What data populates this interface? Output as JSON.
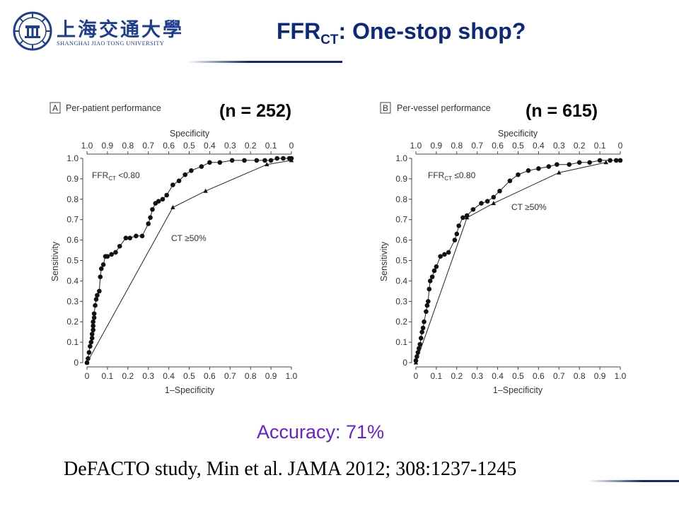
{
  "header": {
    "university_cn": "上海交通大學",
    "university_en": "SHANGHAI JIAO TONG UNIVERSITY",
    "title_main": "FFR",
    "title_sub": "CT",
    "title_rest": ": One-stop shop?"
  },
  "accuracy_text": "Accuracy: 71%",
  "citation": "DeFACTO study,  Min et al. JAMA 2012; 308:1237-1245",
  "chart_data": [
    {
      "type": "line",
      "panel_letter": "A",
      "panel_title": "Per-patient performance",
      "n_label": "(n = 252)",
      "xlabel": "1–Specificity",
      "ylabel": "Sensitivity",
      "top_axis_label": "Specificity",
      "xlim": [
        0,
        1
      ],
      "ylim": [
        0,
        1
      ],
      "x_ticks": [
        "0",
        "0.1",
        "0.2",
        "0.3",
        "0.4",
        "0.5",
        "0.6",
        "0.7",
        "0.8",
        "0.9",
        "1.0"
      ],
      "y_ticks": [
        "0",
        "0.1",
        "0.2",
        "0.3",
        "0.4",
        "0.5",
        "0.6",
        "0.7",
        "0.8",
        "0.9",
        "1.0"
      ],
      "top_ticks": [
        "1.0",
        "0.9",
        "0.8",
        "0.7",
        "0.6",
        "0.5",
        "0.4",
        "0.3",
        "0.2",
        "0.1",
        "0"
      ],
      "series": [
        {
          "name": "FFR",
          "name_sub": "CT",
          "name_rest": " <0.80",
          "marker": "circle",
          "x": [
            0,
            0.005,
            0.01,
            0.015,
            0.02,
            0.025,
            0.025,
            0.03,
            0.03,
            0.03,
            0.035,
            0.035,
            0.04,
            0.045,
            0.05,
            0.06,
            0.065,
            0.07,
            0.08,
            0.09,
            0.1,
            0.12,
            0.14,
            0.16,
            0.19,
            0.21,
            0.24,
            0.27,
            0.3,
            0.31,
            0.32,
            0.335,
            0.35,
            0.37,
            0.39,
            0.42,
            0.45,
            0.48,
            0.51,
            0.56,
            0.6,
            0.65,
            0.71,
            0.77,
            0.83,
            0.87,
            0.9,
            0.93,
            0.96,
            0.99,
            1.0
          ],
          "y": [
            0,
            0.02,
            0.05,
            0.08,
            0.1,
            0.12,
            0.14,
            0.16,
            0.18,
            0.2,
            0.22,
            0.24,
            0.28,
            0.31,
            0.33,
            0.35,
            0.42,
            0.46,
            0.48,
            0.52,
            0.52,
            0.53,
            0.54,
            0.57,
            0.61,
            0.61,
            0.62,
            0.62,
            0.68,
            0.71,
            0.75,
            0.78,
            0.79,
            0.8,
            0.82,
            0.87,
            0.89,
            0.92,
            0.94,
            0.96,
            0.98,
            0.98,
            0.99,
            0.99,
            0.99,
            0.99,
            0.99,
            1.0,
            1.0,
            1.0,
            1.0
          ]
        },
        {
          "name": "CT ≥50%",
          "marker": "triangle",
          "x": [
            0,
            0.42,
            0.58,
            0.88,
            1.0
          ],
          "y": [
            0,
            0.76,
            0.84,
            0.97,
            0.99
          ]
        }
      ]
    },
    {
      "type": "line",
      "panel_letter": "B",
      "panel_title": "Per-vessel performance",
      "n_label": "(n = 615)",
      "xlabel": "1–Specificity",
      "ylabel": "Sensitivity",
      "top_axis_label": "Specificity",
      "xlim": [
        0,
        1
      ],
      "ylim": [
        0,
        1
      ],
      "x_ticks": [
        "0",
        "0.1",
        "0.2",
        "0.3",
        "0.4",
        "0.5",
        "0.6",
        "0.7",
        "0.8",
        "0.9",
        "1.0"
      ],
      "y_ticks": [
        "0",
        "0.1",
        "0.2",
        "0.3",
        "0.4",
        "0.5",
        "0.6",
        "0.7",
        "0.8",
        "0.9",
        "1.0"
      ],
      "top_ticks": [
        "1.0",
        "0.9",
        "0.8",
        "0.7",
        "0.6",
        "0.5",
        "0.4",
        "0.3",
        "0.2",
        "0.1",
        "0"
      ],
      "series": [
        {
          "name": "FFR",
          "name_sub": "CT",
          "name_rest": " ≤0.80",
          "marker": "circle",
          "x": [
            0,
            0.005,
            0.01,
            0.015,
            0.02,
            0.025,
            0.03,
            0.035,
            0.04,
            0.05,
            0.055,
            0.06,
            0.065,
            0.07,
            0.08,
            0.09,
            0.1,
            0.12,
            0.14,
            0.16,
            0.19,
            0.2,
            0.21,
            0.23,
            0.25,
            0.28,
            0.32,
            0.35,
            0.38,
            0.41,
            0.46,
            0.5,
            0.55,
            0.6,
            0.65,
            0.69,
            0.75,
            0.8,
            0.85,
            0.9,
            0.95,
            0.98,
            1.0
          ],
          "y": [
            0.01,
            0.03,
            0.05,
            0.07,
            0.09,
            0.12,
            0.15,
            0.17,
            0.2,
            0.25,
            0.28,
            0.3,
            0.36,
            0.4,
            0.42,
            0.45,
            0.47,
            0.52,
            0.53,
            0.54,
            0.6,
            0.63,
            0.67,
            0.71,
            0.72,
            0.75,
            0.78,
            0.79,
            0.81,
            0.84,
            0.89,
            0.92,
            0.94,
            0.95,
            0.96,
            0.97,
            0.97,
            0.98,
            0.98,
            0.99,
            0.99,
            0.99,
            0.99
          ]
        },
        {
          "name": "CT ≥50%",
          "marker": "triangle",
          "x": [
            0,
            0.25,
            0.38,
            0.7,
            0.93
          ],
          "y": [
            0,
            0.71,
            0.78,
            0.93,
            0.98
          ]
        }
      ]
    }
  ]
}
